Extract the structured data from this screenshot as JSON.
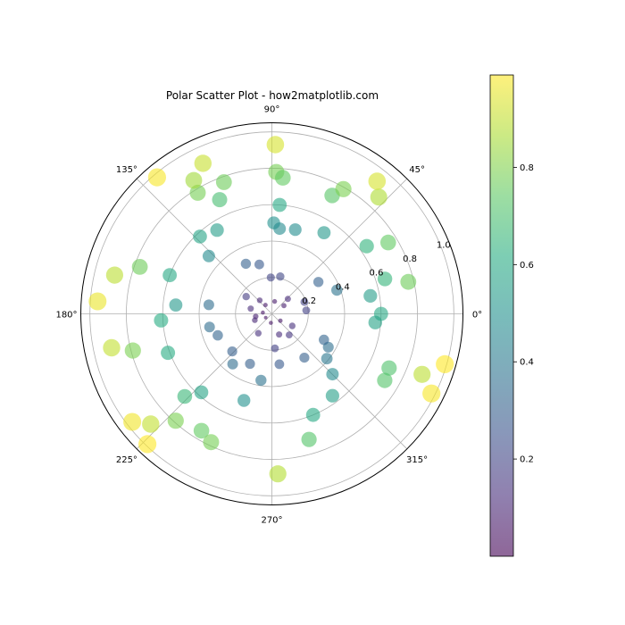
{
  "chart_data": {
    "type": "scatter",
    "projection": "polar",
    "title": "Polar Scatter Plot - how2matplotlib.com",
    "theta_ticks": [
      "0°",
      "45°",
      "90°",
      "135°",
      "180°",
      "225°",
      "270°",
      "315°"
    ],
    "r_ticks": [
      "0.2",
      "0.4",
      "0.6",
      "0.8",
      "1.0"
    ],
    "rlim": [
      0,
      1.05
    ],
    "colormap": "viridis",
    "alpha": 0.6,
    "grid": true,
    "colorbar": {
      "placement": "right",
      "ticks": [
        "0.2",
        "0.4",
        "0.6",
        "0.8"
      ],
      "range": [
        0,
        0.99
      ]
    },
    "points": [
      {
        "theta": 1.35,
        "r": 0.07
      },
      {
        "theta": 2.2,
        "r": 0.06
      },
      {
        "theta": 3.0,
        "r": 0.05
      },
      {
        "theta": 3.7,
        "r": 0.04
      },
      {
        "theta": 4.6,
        "r": 0.05
      },
      {
        "theta": 5.6,
        "r": 0.06
      },
      {
        "theta": 2.9,
        "r": 0.12
      },
      {
        "theta": 3.5,
        "r": 0.1
      },
      {
        "theta": 0.6,
        "r": 0.08
      },
      {
        "theta": 4.1,
        "r": 0.13
      },
      {
        "theta": 5.05,
        "r": 0.12
      },
      {
        "theta": 5.4,
        "r": 0.15
      },
      {
        "theta": 0.1,
        "r": 0.19
      },
      {
        "theta": 0.35,
        "r": 0.19
      },
      {
        "theta": 0.75,
        "r": 0.12
      },
      {
        "theta": 2.3,
        "r": 0.1
      },
      {
        "theta": 4.8,
        "r": 0.19
      },
      {
        "theta": 5.75,
        "r": 0.13
      },
      {
        "theta": 3.3,
        "r": 0.09
      },
      {
        "theta": 2.55,
        "r": 0.17
      },
      {
        "theta": 1.6,
        "r": 0.2
      },
      {
        "theta": 1.35,
        "r": 0.21
      },
      {
        "theta": 0.35,
        "r": 0.38
      },
      {
        "theta": 0.6,
        "r": 0.31
      },
      {
        "theta": 1.82,
        "r": 0.28
      },
      {
        "theta": 2.05,
        "r": 0.31
      },
      {
        "theta": 3.0,
        "r": 0.35
      },
      {
        "theta": 3.35,
        "r": 0.35
      },
      {
        "theta": 3.52,
        "r": 0.32
      },
      {
        "theta": 3.9,
        "r": 0.3
      },
      {
        "theta": 4.3,
        "r": 0.3
      },
      {
        "theta": 4.86,
        "r": 0.28
      },
      {
        "theta": 5.35,
        "r": 0.3
      },
      {
        "theta": 5.75,
        "r": 0.36
      },
      {
        "theta": 5.82,
        "r": 0.32
      },
      {
        "theta": 5.6,
        "r": 0.39
      },
      {
        "theta": 4.05,
        "r": 0.35
      },
      {
        "theta": 4.55,
        "r": 0.37
      },
      {
        "theta": 1.55,
        "r": 0.5
      },
      {
        "theta": 1.48,
        "r": 0.47
      },
      {
        "theta": 1.3,
        "r": 0.48
      },
      {
        "theta": 1.0,
        "r": 0.53
      },
      {
        "theta": 2.15,
        "r": 0.55
      },
      {
        "theta": 2.4,
        "r": 0.47
      },
      {
        "theta": 3.05,
        "r": 0.53
      },
      {
        "theta": 3.2,
        "r": 0.61
      },
      {
        "theta": 3.98,
        "r": 0.58
      },
      {
        "theta": 4.4,
        "r": 0.5
      },
      {
        "theta": 5.5,
        "r": 0.47
      },
      {
        "theta": 5.35,
        "r": 0.56
      },
      {
        "theta": 0.18,
        "r": 0.55
      },
      {
        "theta": 0.0,
        "r": 0.6
      },
      {
        "theta": 6.2,
        "r": 0.57
      },
      {
        "theta": 0.62,
        "r": 0.64
      },
      {
        "theta": 0.3,
        "r": 0.65
      },
      {
        "theta": 2.32,
        "r": 0.58
      },
      {
        "theta": 2.78,
        "r": 0.6
      },
      {
        "theta": 3.5,
        "r": 0.61
      },
      {
        "theta": 5.1,
        "r": 0.6
      },
      {
        "theta": 5.0,
        "r": 0.72
      },
      {
        "theta": 3.9,
        "r": 0.66
      },
      {
        "theta": 1.5,
        "r": 0.6
      },
      {
        "theta": 1.54,
        "r": 0.78
      },
      {
        "theta": 1.49,
        "r": 0.75
      },
      {
        "theta": 1.1,
        "r": 0.73
      },
      {
        "theta": 1.05,
        "r": 0.79
      },
      {
        "theta": 2.0,
        "r": 0.69
      },
      {
        "theta": 1.92,
        "r": 0.77
      },
      {
        "theta": 2.12,
        "r": 0.78
      },
      {
        "theta": 2.8,
        "r": 0.77
      },
      {
        "theta": 3.98,
        "r": 0.79
      },
      {
        "theta": 4.17,
        "r": 0.75
      },
      {
        "theta": 4.27,
        "r": 0.78
      },
      {
        "theta": 5.75,
        "r": 0.72
      },
      {
        "theta": 5.85,
        "r": 0.71
      },
      {
        "theta": 0.23,
        "r": 0.77
      },
      {
        "theta": 0.55,
        "r": 0.75
      },
      {
        "theta": 3.4,
        "r": 0.79
      },
      {
        "theta": 1.55,
        "r": 0.93
      },
      {
        "theta": 2.0,
        "r": 0.91
      },
      {
        "theta": 2.1,
        "r": 0.85
      },
      {
        "theta": 4.75,
        "r": 0.88
      },
      {
        "theta": 2.9,
        "r": 0.89
      },
      {
        "theta": 3.35,
        "r": 0.9
      },
      {
        "theta": 0.83,
        "r": 0.87
      },
      {
        "theta": 3.88,
        "r": 0.9
      },
      {
        "theta": 5.9,
        "r": 0.89
      },
      {
        "theta": 0.9,
        "r": 0.93
      },
      {
        "theta": 2.27,
        "r": 0.98
      },
      {
        "theta": 3.95,
        "r": 0.99
      },
      {
        "theta": 3.8,
        "r": 0.97
      },
      {
        "theta": 5.82,
        "r": 0.98
      },
      {
        "theta": 6.0,
        "r": 0.99
      },
      {
        "theta": 3.07,
        "r": 0.96
      }
    ]
  }
}
